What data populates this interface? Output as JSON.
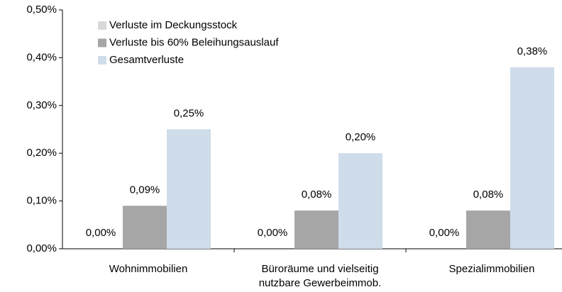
{
  "chart_data": {
    "type": "bar",
    "categories": [
      "Wohnimmobilien",
      "Büroräume und vielseitig nutzbare Gewerbeimmob.",
      "Spezialimmobilien"
    ],
    "series": [
      {
        "name": "Verluste im Deckungsstock",
        "color": "#d9d9d9",
        "values": [
          0,
          0,
          0
        ],
        "value_labels": [
          "0,00%",
          "0,00%",
          "0,00%"
        ]
      },
      {
        "name": "Verluste bis 60% Beleihungsauslauf",
        "color": "#a6a6a6",
        "values": [
          0.09,
          0.08,
          0.08
        ],
        "value_labels": [
          "0,09%",
          "0,08%",
          "0,08%"
        ]
      },
      {
        "name": "Gesamtverluste",
        "color": "#cfdcea",
        "values": [
          0.25,
          0.2,
          0.38
        ],
        "value_labels": [
          "0,25%",
          "0,20%",
          "0,38%"
        ]
      }
    ],
    "ylim": [
      0,
      0.5
    ],
    "yticks": [
      {
        "value": 0,
        "label": "0,00%"
      },
      {
        "value": 0.1,
        "label": "0,10%"
      },
      {
        "value": 0.2,
        "label": "0,20%"
      },
      {
        "value": 0.3,
        "label": "0,30%"
      },
      {
        "value": 0.4,
        "label": "0,40%"
      },
      {
        "value": 0.5,
        "label": "0,50%"
      }
    ],
    "legend": "upper left",
    "grid": false
  }
}
